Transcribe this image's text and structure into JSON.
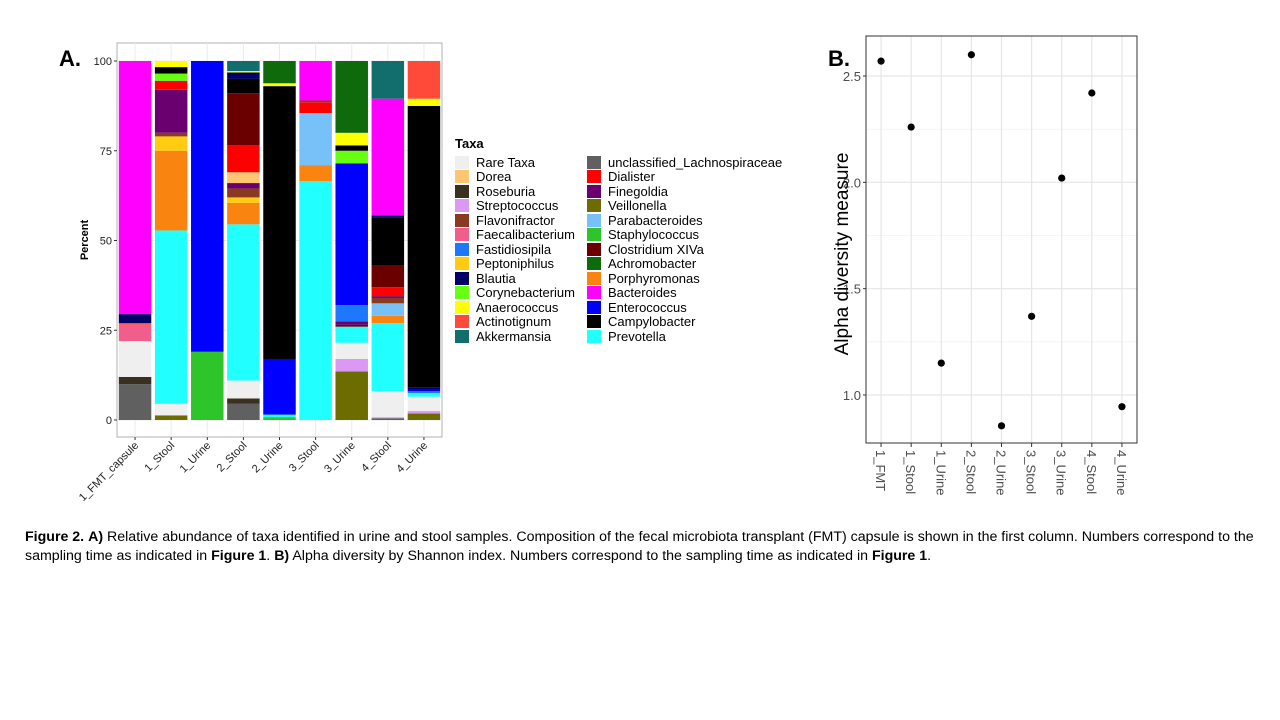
{
  "panels": {
    "a_label": "A.",
    "b_label": "B."
  },
  "legend": {
    "title": "Taxa",
    "items": [
      {
        "name": "Rare Taxa",
        "color": "#EFEFEF"
      },
      {
        "name": "Dorea",
        "color": "#FEC672"
      },
      {
        "name": "Roseburia",
        "color": "#3A3020"
      },
      {
        "name": "Streptococcus",
        "color": "#DA9AF4"
      },
      {
        "name": "Flavonifractor",
        "color": "#8B3A22"
      },
      {
        "name": "Faecalibacterium",
        "color": "#F15E8B"
      },
      {
        "name": "Fastidiosipila",
        "color": "#1E78FF"
      },
      {
        "name": "Peptoniphilus",
        "color": "#FFCC11"
      },
      {
        "name": "Blautia",
        "color": "#020066"
      },
      {
        "name": "Corynebacterium",
        "color": "#66FF11"
      },
      {
        "name": "Anaerococcus",
        "color": "#FFFF00"
      },
      {
        "name": "Actinotignum",
        "color": "#FF4A3A"
      },
      {
        "name": "Akkermansia",
        "color": "#126E6C"
      },
      {
        "name": "unclassified_Lachnospiraceae",
        "color": "#606060"
      },
      {
        "name": "Dialister",
        "color": "#FF0000"
      },
      {
        "name": "Finegoldia",
        "color": "#6A0070"
      },
      {
        "name": "Veillonella",
        "color": "#6C6C00"
      },
      {
        "name": "Parabacteroides",
        "color": "#78C0F8"
      },
      {
        "name": "Staphylococcus",
        "color": "#2EC52A"
      },
      {
        "name": "Clostridium XIVa",
        "color": "#6A0000"
      },
      {
        "name": "Achromobacter",
        "color": "#0E6A0A"
      },
      {
        "name": "Porphyromonas",
        "color": "#FA8410"
      },
      {
        "name": "Bacteroides",
        "color": "#FF00FF"
      },
      {
        "name": "Enterococcus",
        "color": "#0000FF"
      },
      {
        "name": "Campylobacter",
        "color": "#000000"
      },
      {
        "name": "Prevotella",
        "color": "#22FFFF"
      }
    ]
  },
  "chart_data": [
    {
      "type": "bar",
      "stacked": true,
      "title": "",
      "xlabel": "",
      "ylabel": "Percent",
      "ylim": [
        0,
        100
      ],
      "yticks": [
        0,
        25,
        50,
        75,
        100
      ],
      "grid": true,
      "legend_position": "right",
      "categories": [
        "1_FMT_capsule",
        "1_Stool",
        "1_Urine",
        "2_Stool",
        "2_Urine",
        "3_Stool",
        "3_Urine",
        "4_Stool",
        "4_Urine"
      ],
      "stacks": [
        [
          {
            "taxon": "unclassified_Lachnospiraceae",
            "value": 10
          },
          {
            "taxon": "Roseburia",
            "value": 2
          },
          {
            "taxon": "Rare Taxa",
            "value": 10
          },
          {
            "taxon": "Faecalibacterium",
            "value": 4.5
          },
          {
            "taxon": "Actinotignum",
            "value": 0.5
          },
          {
            "taxon": "Blautia",
            "value": 2.5
          },
          {
            "taxon": "Bacteroides",
            "value": 70.5
          }
        ],
        [
          {
            "taxon": "Veillonella",
            "value": 1.3
          },
          {
            "taxon": "Rare Taxa",
            "value": 3.2
          },
          {
            "taxon": "Prevotella",
            "value": 48.3
          },
          {
            "taxon": "Porphyromonas",
            "value": 22.2
          },
          {
            "taxon": "Peptoniphilus",
            "value": 4
          },
          {
            "taxon": "Flavonifractor",
            "value": 1
          },
          {
            "taxon": "Finegoldia",
            "value": 12
          },
          {
            "taxon": "Dialister",
            "value": 2.5
          },
          {
            "taxon": "Corynebacterium",
            "value": 2
          },
          {
            "taxon": "Campylobacter",
            "value": 1.8
          },
          {
            "taxon": "Anaerococcus",
            "value": 1.7
          }
        ],
        [
          {
            "taxon": "Staphylococcus",
            "value": 19
          },
          {
            "taxon": "Enterococcus",
            "value": 81
          }
        ],
        [
          {
            "taxon": "unclassified_Lachnospiraceae",
            "value": 4.5
          },
          {
            "taxon": "Roseburia",
            "value": 1.5
          },
          {
            "taxon": "Rare Taxa",
            "value": 5
          },
          {
            "taxon": "Prevotella",
            "value": 43.5
          },
          {
            "taxon": "Porphyromonas",
            "value": 6
          },
          {
            "taxon": "Peptoniphilus",
            "value": 1.5
          },
          {
            "taxon": "Flavonifractor",
            "value": 2.5
          },
          {
            "taxon": "Finegoldia",
            "value": 1.5
          },
          {
            "taxon": "Dorea",
            "value": 3
          },
          {
            "taxon": "Dialister",
            "value": 7.5
          },
          {
            "taxon": "Clostridium XIVa",
            "value": 14.5
          },
          {
            "taxon": "Campylobacter",
            "value": 4
          },
          {
            "taxon": "Blautia",
            "value": 1.8
          },
          {
            "taxon": "Anaerococcus",
            "value": 0.4
          },
          {
            "taxon": "Akkermansia",
            "value": 2.8
          }
        ],
        [
          {
            "taxon": "Staphylococcus",
            "value": 0.8
          },
          {
            "taxon": "Prevotella",
            "value": 0.7
          },
          {
            "taxon": "Enterococcus",
            "value": 15.5
          },
          {
            "taxon": "Campylobacter",
            "value": 76
          },
          {
            "taxon": "Anaerococcus",
            "value": 0.8
          },
          {
            "taxon": "Achromobacter",
            "value": 6.2
          }
        ],
        [
          {
            "taxon": "Prevotella",
            "value": 66.5
          },
          {
            "taxon": "Porphyromonas",
            "value": 4.5
          },
          {
            "taxon": "Parabacteroides",
            "value": 14.5
          },
          {
            "taxon": "Dialister",
            "value": 3
          },
          {
            "taxon": "Flavonifractor",
            "value": 0.5
          },
          {
            "taxon": "Bacteroides",
            "value": 11
          }
        ],
        [
          {
            "taxon": "Veillonella",
            "value": 13.5
          },
          {
            "taxon": "Streptococcus",
            "value": 3.5
          },
          {
            "taxon": "Rare Taxa",
            "value": 4.5
          },
          {
            "taxon": "Prevotella",
            "value": 4.5
          },
          {
            "taxon": "Clostridium XIVa",
            "value": 0.5
          },
          {
            "taxon": "Finegoldia",
            "value": 1
          },
          {
            "taxon": "Fastidiosipila",
            "value": 4.5
          },
          {
            "taxon": "Enterococcus",
            "value": 39.5
          },
          {
            "taxon": "Corynebacterium",
            "value": 3.5
          },
          {
            "taxon": "Campylobacter",
            "value": 1.5
          },
          {
            "taxon": "Anaerococcus",
            "value": 3.5
          },
          {
            "taxon": "Achromobacter",
            "value": 20
          }
        ],
        [
          {
            "taxon": "unclassified_Lachnospiraceae",
            "value": 0.5
          },
          {
            "taxon": "Streptococcus",
            "value": 0.3
          },
          {
            "taxon": "Rare Taxa",
            "value": 7.2
          },
          {
            "taxon": "Prevotella",
            "value": 19
          },
          {
            "taxon": "Porphyromonas",
            "value": 2
          },
          {
            "taxon": "Parabacteroides",
            "value": 3.5
          },
          {
            "taxon": "Flavonifractor",
            "value": 1.5
          },
          {
            "taxon": "Finegoldia",
            "value": 0.5
          },
          {
            "taxon": "Dialister",
            "value": 2.5
          },
          {
            "taxon": "Clostridium XIVa",
            "value": 6
          },
          {
            "taxon": "Campylobacter",
            "value": 13.5
          },
          {
            "taxon": "Blautia",
            "value": 0.5
          },
          {
            "taxon": "Bacteroides",
            "value": 32.5
          },
          {
            "taxon": "Akkermansia",
            "value": 10.5
          }
        ],
        [
          {
            "taxon": "Veillonella",
            "value": 1.8
          },
          {
            "taxon": "Streptococcus",
            "value": 0.7
          },
          {
            "taxon": "Rare Taxa",
            "value": 4
          },
          {
            "taxon": "Prevotella",
            "value": 1
          },
          {
            "taxon": "Fastidiosipila",
            "value": 0.5
          },
          {
            "taxon": "Enterococcus",
            "value": 0.5
          },
          {
            "taxon": "Blautia",
            "value": 0.5
          },
          {
            "taxon": "Campylobacter",
            "value": 78.5
          },
          {
            "taxon": "Anaerococcus",
            "value": 2
          },
          {
            "taxon": "Actinotignum",
            "value": 10.5
          }
        ]
      ]
    },
    {
      "type": "scatter",
      "title": "",
      "xlabel": "",
      "ylabel": "Alpha diversity measure",
      "ylim": [
        0.78,
        2.7
      ],
      "yticks": [
        1.0,
        1.5,
        2.0,
        2.5
      ],
      "yticklabels": [
        "1.0",
        "1.5",
        "2.0",
        "2.5"
      ],
      "grid": true,
      "x": [
        "1_FMT",
        "1_Stool",
        "1_Urine",
        "2_Stool",
        "2_Urine",
        "3_Stool",
        "3_Urine",
        "4_Stool",
        "4_Urine"
      ],
      "y": [
        2.57,
        2.26,
        1.15,
        2.6,
        0.855,
        1.37,
        2.02,
        2.42,
        0.945
      ]
    }
  ],
  "caption": {
    "fig_label": "Figure 2.",
    "a_label": "A)",
    "a_text": " Relative abundance of taxa identified in urine and stool samples. Composition of the fecal microbiota transplant (FMT) capsule is shown in the first column. Numbers correspond to the sampling time as indicated in ",
    "a_ref": "Figure 1",
    "a_end": ". ",
    "b_label": "B)",
    "b_text": " Alpha diversity by Shannon index. Numbers correspond to the sampling time as indicated in ",
    "b_ref": "Figure 1",
    "b_end": "."
  }
}
